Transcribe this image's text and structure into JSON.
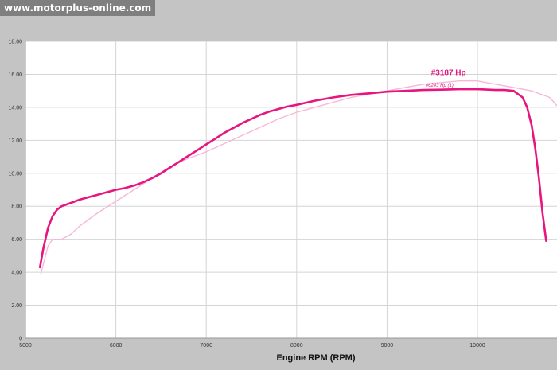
{
  "watermark": "www.motorplus-online.com",
  "chart_data": {
    "type": "line",
    "xlabel": "Engine RPM (RPM)",
    "ylabel": "",
    "xlim": [
      5000,
      10880
    ],
    "ylim": [
      0,
      18
    ],
    "x_ticks": [
      5000,
      6000,
      7000,
      8000,
      9000,
      10000
    ],
    "x_tick_labels": [
      "5000",
      "6000",
      "7000",
      "8000",
      "9000",
      "10000"
    ],
    "y_ticks": [
      0,
      2,
      4,
      6,
      8,
      10,
      12,
      14,
      16,
      18
    ],
    "y_tick_labels": [
      "0",
      "2.00",
      "4.00",
      "6.00",
      "8.00",
      "10.00",
      "12.00",
      "14.00",
      "16.00",
      "18.00"
    ],
    "grid": true,
    "series": [
      {
        "color": "#e8147f",
        "x": [
          5160,
          5200,
          5250,
          5300,
          5350,
          5400,
          5500,
          5600,
          5700,
          5800,
          5900,
          6000,
          6100,
          6200,
          6300,
          6400,
          6500,
          6600,
          6700,
          6800,
          6900,
          7000,
          7100,
          7200,
          7300,
          7400,
          7500,
          7600,
          7700,
          7800,
          7900,
          8000,
          8200,
          8400,
          8600,
          8800,
          9000,
          9200,
          9400,
          9600,
          9800,
          10000,
          10200,
          10300,
          10400,
          10500,
          10550,
          10600,
          10640,
          10680,
          10720,
          10760
        ],
        "y": [
          4.3,
          5.5,
          6.7,
          7.4,
          7.8,
          8.0,
          8.2,
          8.4,
          8.55,
          8.7,
          8.85,
          9.0,
          9.1,
          9.25,
          9.45,
          9.7,
          10.0,
          10.35,
          10.7,
          11.05,
          11.4,
          11.75,
          12.1,
          12.45,
          12.75,
          13.05,
          13.3,
          13.55,
          13.75,
          13.9,
          14.05,
          14.15,
          14.4,
          14.6,
          14.75,
          14.85,
          14.95,
          15.0,
          15.05,
          15.07,
          15.1,
          15.1,
          15.05,
          15.05,
          15.0,
          14.6,
          14.0,
          12.9,
          11.5,
          9.7,
          7.6,
          5.9
        ]
      },
      {
        "color": "#f6b8d8",
        "x": [
          5170,
          5250,
          5300,
          5400,
          5500,
          5600,
          5700,
          5800,
          6000,
          6200,
          6400,
          6600,
          6800,
          7000,
          7200,
          7400,
          7600,
          7800,
          8000,
          8200,
          8400,
          8600,
          8800,
          9000,
          9200,
          9400,
          9600,
          9800,
          10000,
          10200,
          10400,
          10600,
          10800,
          10880
        ],
        "y": [
          3.9,
          5.6,
          6.0,
          6.0,
          6.3,
          6.8,
          7.2,
          7.6,
          8.3,
          9.0,
          9.7,
          10.4,
          10.9,
          11.3,
          11.8,
          12.3,
          12.8,
          13.3,
          13.7,
          14.0,
          14.3,
          14.6,
          14.8,
          15.0,
          15.2,
          15.4,
          15.5,
          15.6,
          15.6,
          15.4,
          15.2,
          15.0,
          14.6,
          14.1
        ]
      }
    ],
    "annotations": [
      {
        "text": "#3187 Hp",
        "x": 9680,
        "y": 15.95,
        "style": "main"
      },
      {
        "text": "#6243 Hp (1)",
        "x": 9580,
        "y": 15.25,
        "style": "sub"
      }
    ]
  }
}
